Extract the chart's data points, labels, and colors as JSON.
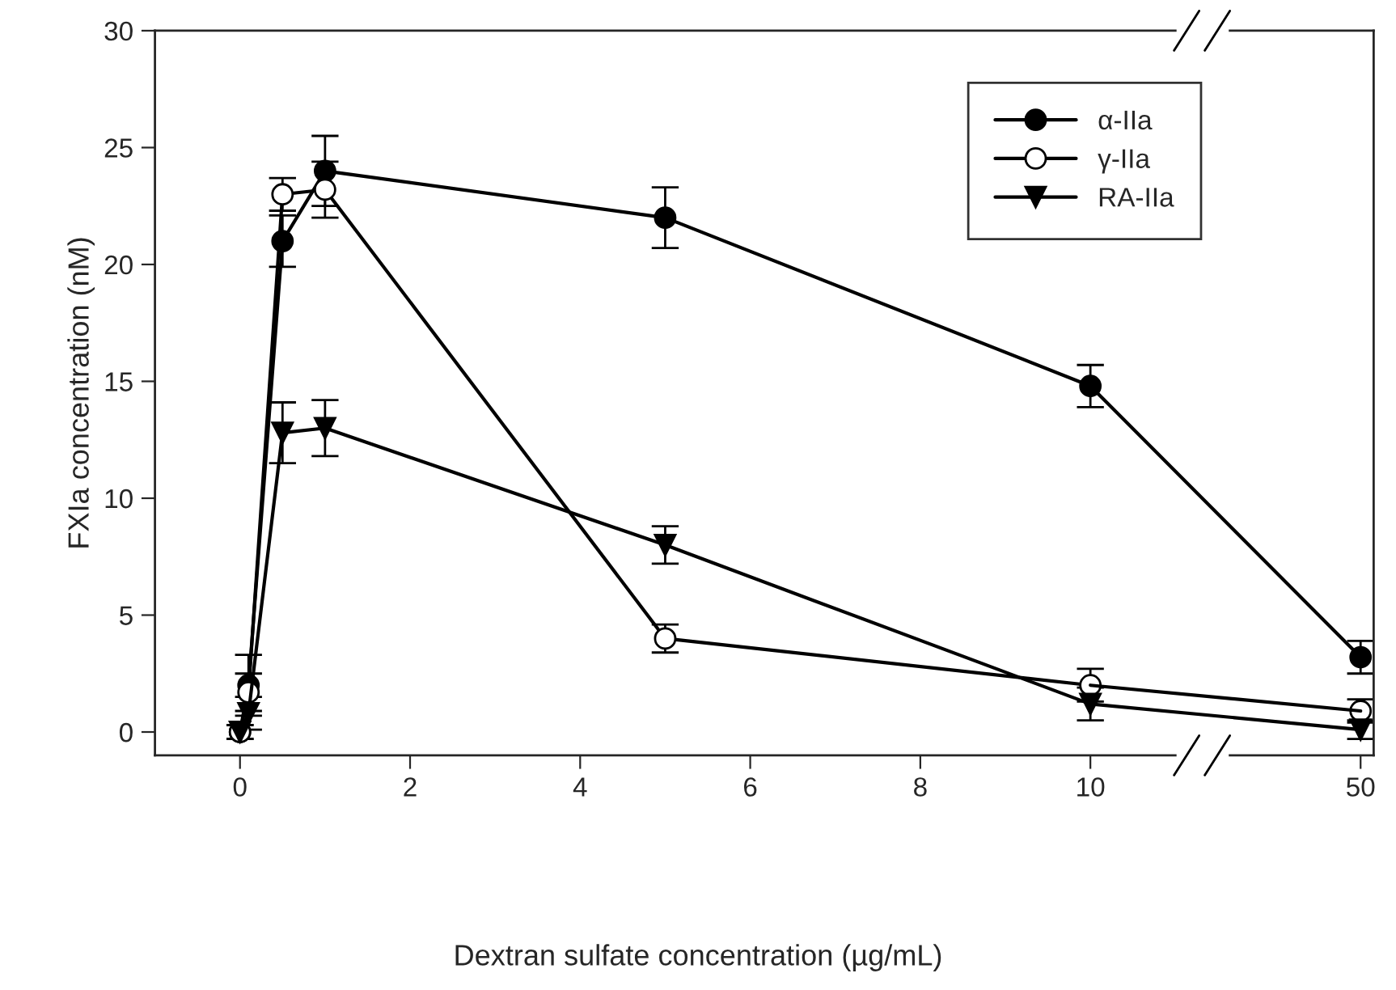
{
  "chart_data": [
    {
      "type": "line",
      "xlabel": "Dextran sulfate concentration (µg/mL)",
      "ylabel": "FXIa concentration (nM)",
      "xlim": [
        -1,
        11
      ],
      "xticks": [
        0,
        2,
        4,
        6,
        8,
        10
      ],
      "ylim": [
        -1,
        30
      ],
      "yticks": [
        0,
        5,
        10,
        15,
        20,
        25,
        30
      ],
      "line_style": "solid",
      "legend": "top right",
      "x": [
        0,
        0.1,
        0.5,
        1,
        5,
        10
      ],
      "series": [
        {
          "name": "α-IIa",
          "color": "#000000",
          "marker": "circle",
          "values": [
            0,
            2.0,
            21.0,
            24.0,
            22.0,
            14.8
          ],
          "errors": [
            0.3,
            1.3,
            1.1,
            1.5,
            1.3,
            0.9
          ]
        },
        {
          "name": "γ-IIa",
          "color": "#000000",
          "marker": "circle",
          "values": [
            0,
            1.7,
            23.0,
            23.2,
            4.0,
            2.0
          ],
          "errors": [
            0.3,
            0.8,
            0.7,
            1.2,
            0.6,
            0.7
          ]
        },
        {
          "name": "RA-IIa",
          "color": "#000000",
          "marker": "triangle",
          "values": [
            0,
            0.8,
            12.8,
            13.0,
            8.0,
            1.2
          ],
          "errors": [
            0.3,
            0.7,
            1.3,
            1.2,
            0.8,
            0.7
          ]
        }
      ]
    },
    {
      "type": "line",
      "categories": [
        "50"
      ],
      "ylim": [
        -1,
        30
      ],
      "tick_labels": "x",
      "line_style": "solid",
      "series": [
        {
          "color": "#000000",
          "marker": "circle",
          "values": [
            3.2
          ],
          "errors": [
            0.7
          ]
        },
        {
          "color": "#000000",
          "marker": "circle",
          "values": [
            0.9
          ],
          "errors": [
            0.5
          ]
        },
        {
          "color": "#000000",
          "marker": "triangle",
          "values": [
            0.1
          ],
          "errors": [
            0.4
          ]
        }
      ]
    }
  ]
}
